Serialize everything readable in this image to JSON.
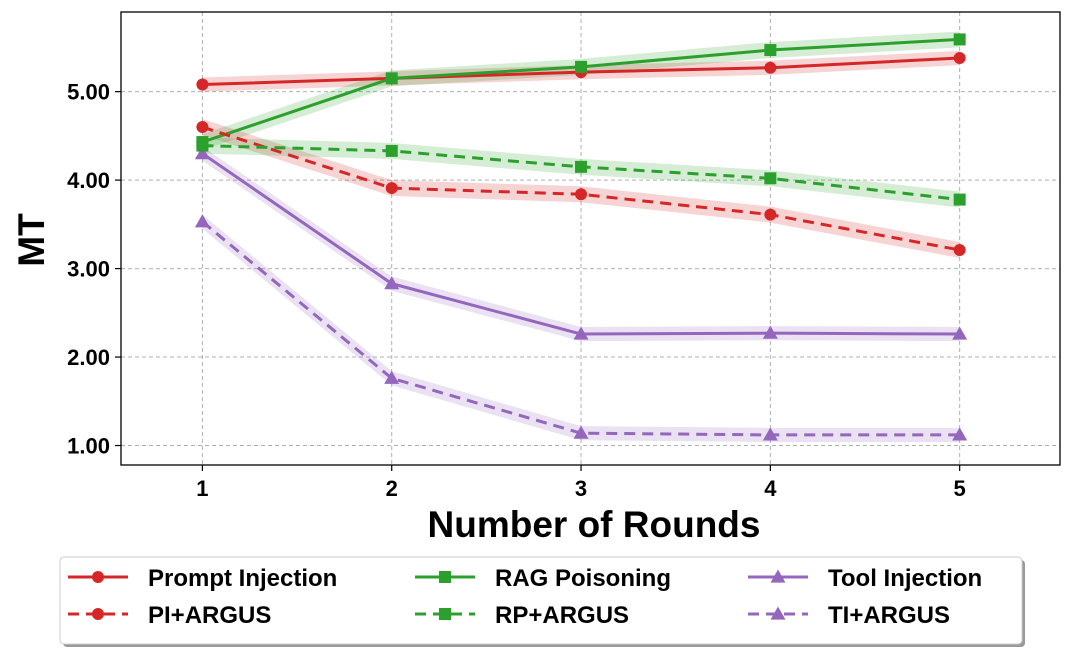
{
  "chart_data": {
    "type": "line",
    "title": "",
    "xlabel": "Number of Rounds",
    "ylabel": "MT",
    "x": [
      1,
      2,
      3,
      4,
      5
    ],
    "x_tick_labels": [
      "1",
      "2",
      "3",
      "4",
      "5"
    ],
    "y_ticks": [
      1,
      2,
      3,
      4,
      5
    ],
    "y_tick_labels": [
      "1.00",
      "2.00",
      "3.00",
      "4.00",
      "5.00"
    ],
    "xlim": [
      0.57,
      5.53
    ],
    "ylim": [
      0.78,
      5.9
    ],
    "grid": true,
    "legend_position": "bottom (below plot)",
    "series": [
      {
        "name": "Prompt Injection",
        "color": "#d62728",
        "linestyle": "solid",
        "marker": "circle",
        "values": [
          5.08,
          5.15,
          5.22,
          5.27,
          5.38
        ],
        "band": 0.08
      },
      {
        "name": "RAG Poisoning",
        "color": "#2ca02c",
        "linestyle": "solid",
        "marker": "square",
        "values": [
          4.43,
          5.15,
          5.28,
          5.47,
          5.59
        ],
        "band": 0.09
      },
      {
        "name": "Tool Injection",
        "color": "#9467bd",
        "linestyle": "solid",
        "marker": "triangle",
        "values": [
          4.3,
          2.83,
          2.26,
          2.27,
          2.26
        ],
        "band": 0.08
      },
      {
        "name": "PI+ARGUS",
        "color": "#d62728",
        "linestyle": "dashed",
        "marker": "circle",
        "values": [
          4.6,
          3.91,
          3.84,
          3.61,
          3.21
        ],
        "band": 0.09
      },
      {
        "name": "RP+ARGUS",
        "color": "#2ca02c",
        "linestyle": "dashed",
        "marker": "square",
        "values": [
          4.39,
          4.33,
          4.15,
          4.02,
          3.78
        ],
        "band": 0.09
      },
      {
        "name": "TI+ARGUS",
        "color": "#9467bd",
        "linestyle": "dashed",
        "marker": "triangle",
        "values": [
          3.53,
          1.76,
          1.14,
          1.12,
          1.12
        ],
        "band": 0.08
      }
    ]
  }
}
